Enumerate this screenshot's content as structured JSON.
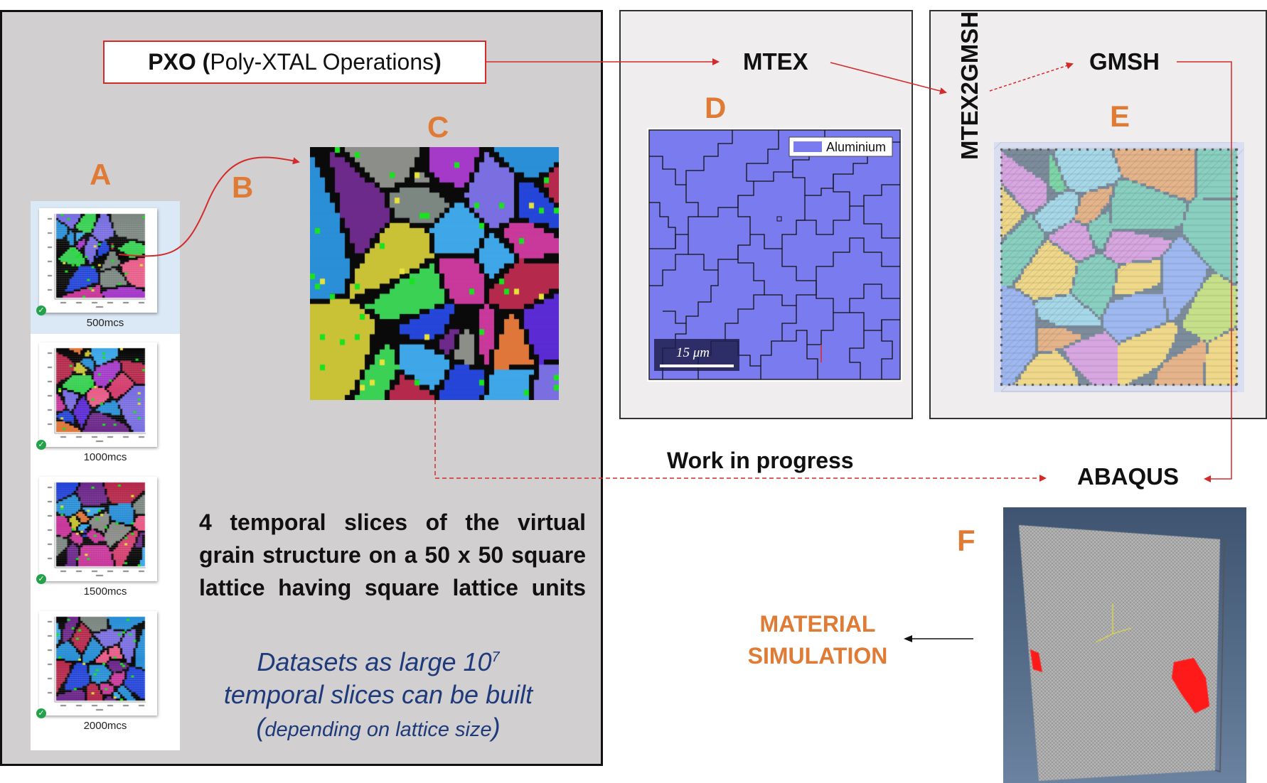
{
  "pxo": {
    "bold": "PXO",
    "open": "(",
    "name": "Poly-XTAL Operations",
    "close": ")"
  },
  "tools": {
    "mtex": "MTEX",
    "mtex2gmsh": "MTEX2GMSH",
    "gmsh": "GMSH",
    "abaqus": "ABAQUS"
  },
  "letters": {
    "a": "A",
    "b": "B",
    "c": "C",
    "d": "D",
    "e": "E",
    "f": "F"
  },
  "thumbnails": [
    {
      "caption": "500mcs"
    },
    {
      "caption": "1000mcs"
    },
    {
      "caption": "1500mcs"
    },
    {
      "caption": "2000mcs"
    }
  ],
  "description": {
    "line1": "4 temporal slices of the virtual",
    "line2": "grain structure on a 50 x 50 square",
    "line3": "lattice having square lattice units"
  },
  "datasets": {
    "line1_prefix": "Datasets as large 10",
    "line1_sup": "7",
    "line2": "temporal slices can be built",
    "line3_open": "(",
    "line3": "depending on lattice size",
    "line3_close": ")"
  },
  "mtex_map": {
    "legend": "Aluminium",
    "scalebar": "15 μm"
  },
  "work_in_progress": "Work in progress",
  "material_simulation": {
    "line1": "MATERIAL",
    "line2": "SIMULATION"
  },
  "colors": {
    "accent": "#e07b35",
    "arrow": "#d42a2a",
    "grain_blue": "#7b7bf0",
    "text_navy": "#1e3a7a"
  }
}
